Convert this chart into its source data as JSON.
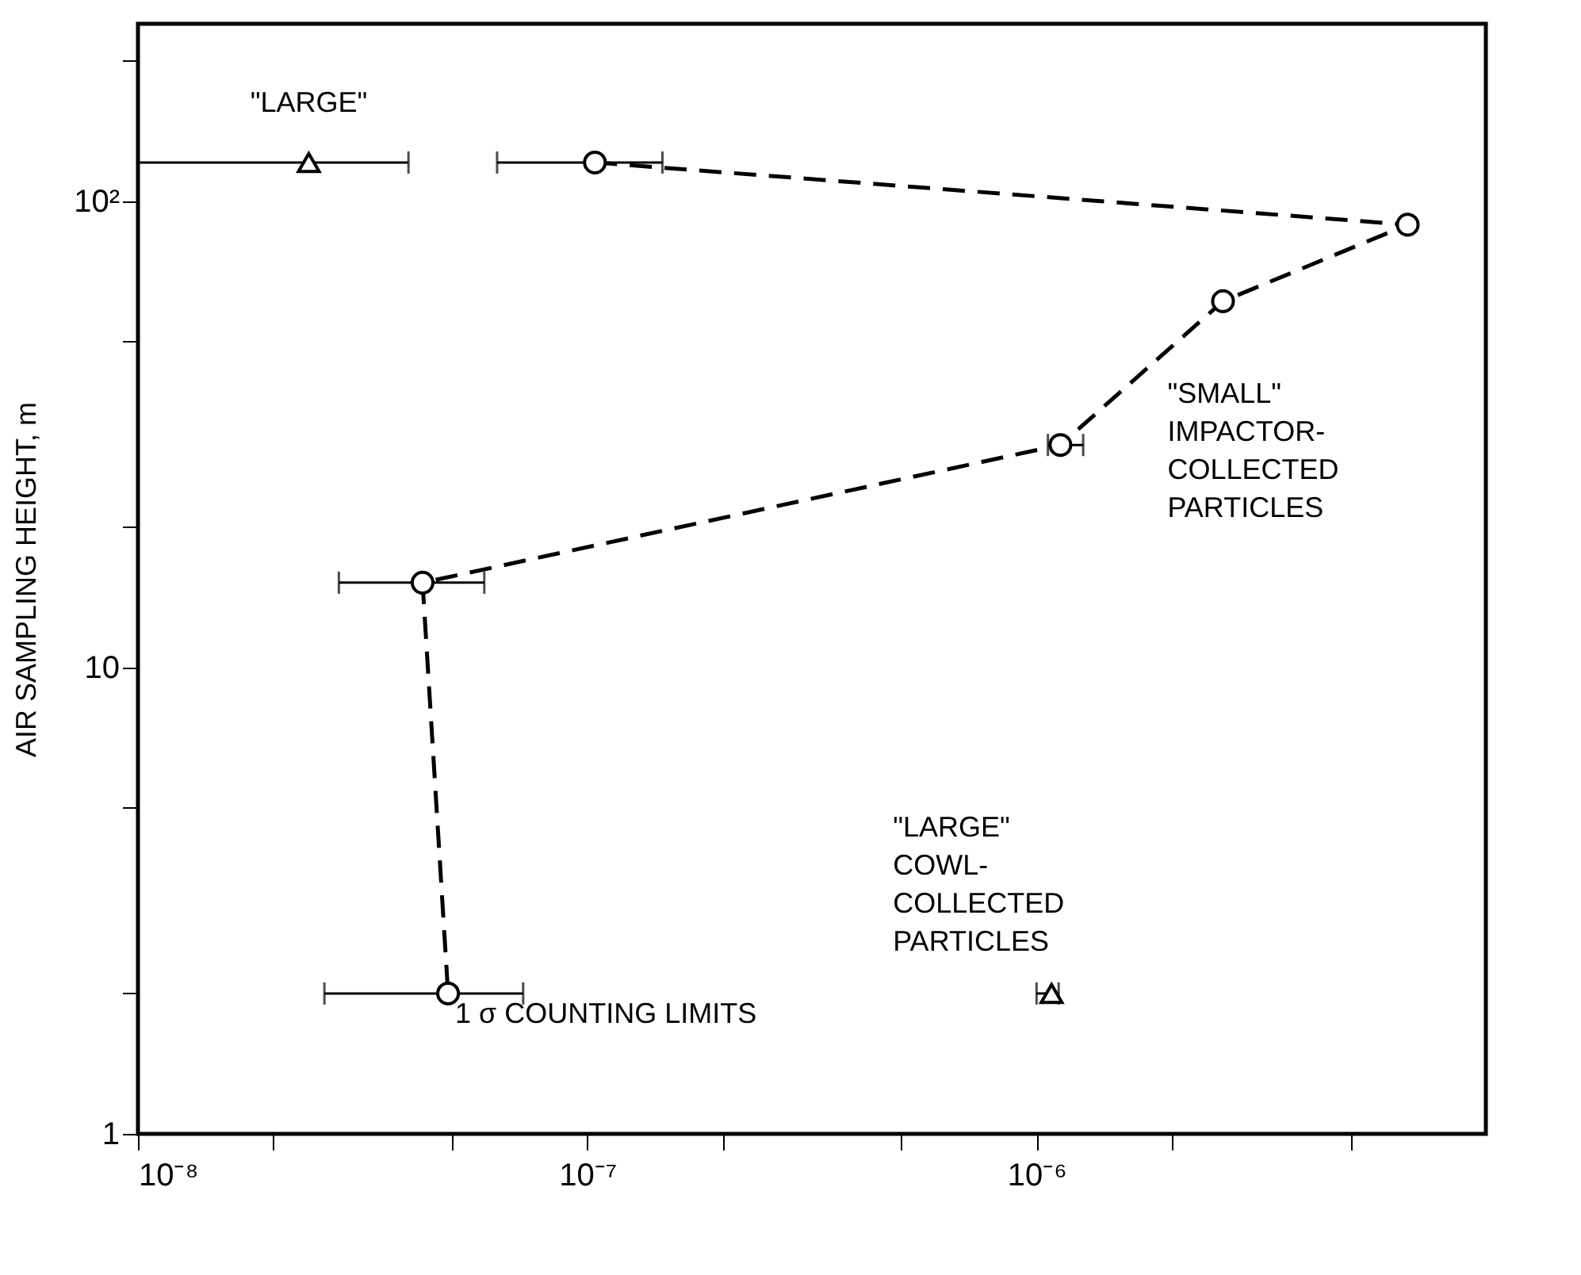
{
  "chart_data": {
    "type": "line",
    "ylabel": "AIR SAMPLING HEIGHT, m",
    "log": "xy",
    "grid": false,
    "xlim": [
      1e-08,
      1e-05
    ],
    "ylim": [
      1,
      240
    ],
    "xticks": [
      {
        "value": 1e-08,
        "label": "10⁻⁸"
      },
      {
        "value": 2e-08,
        "label": null
      },
      {
        "value": 5e-08,
        "label": null
      },
      {
        "value": 1e-07,
        "label": "10⁻⁷"
      },
      {
        "value": 2e-07,
        "label": null
      },
      {
        "value": 5e-07,
        "label": null
      },
      {
        "value": 1e-06,
        "label": "10⁻⁶"
      },
      {
        "value": 2e-06,
        "label": null
      },
      {
        "value": 5e-06,
        "label": null
      }
    ],
    "yticks": [
      1,
      {
        "value": 2,
        "label": null
      },
      {
        "value": 5,
        "label": null
      },
      10,
      {
        "value": 20,
        "label": null
      },
      {
        "value": 50,
        "label": null
      },
      {
        "value": 100,
        "label": "10²"
      },
      {
        "value": 200,
        "label": null
      }
    ],
    "series": [
      {
        "color": "#000000",
        "marker": "circle",
        "line_style": "dashed",
        "x": [
          1.04e-07,
          6.7e-06,
          2.6e-06,
          1.13e-06,
          4.3e-08,
          4.9e-08
        ],
        "values": [
          121,
          89,
          61,
          30,
          15.2,
          2
        ],
        "xerrors": [
          [
            6.3e-08,
            1.47e-07
          ],
          null,
          null,
          [
            1.06e-06,
            1.27e-06
          ],
          [
            2.8e-08,
            5.9e-08
          ],
          [
            2.6e-08,
            7.2e-08
          ]
        ]
      },
      {
        "type": "scatter",
        "color": "#000000",
        "marker": "triangle",
        "x": [
          2.4e-08,
          1.08e-06
        ],
        "values": [
          121,
          2
        ],
        "xerrors": [
          [
            1e-08,
            4e-08
          ],
          [
            1e-06,
            1.12e-06
          ]
        ]
      }
    ],
    "annotations": [
      {
        "text": "\"LARGE\"",
        "x": 2.4e-08,
        "y": 121
      },
      {
        "text": "\"SMALL\" IMPACTOR-COLLECTED PARTICLES",
        "x": 2.6e-06,
        "y": 61
      },
      {
        "text": "\"LARGE\" COWL-COLLECTED PARTICLES",
        "x": 1.08e-06,
        "y": 2
      },
      "1 σ COUNTING LIMITS"
    ]
  }
}
